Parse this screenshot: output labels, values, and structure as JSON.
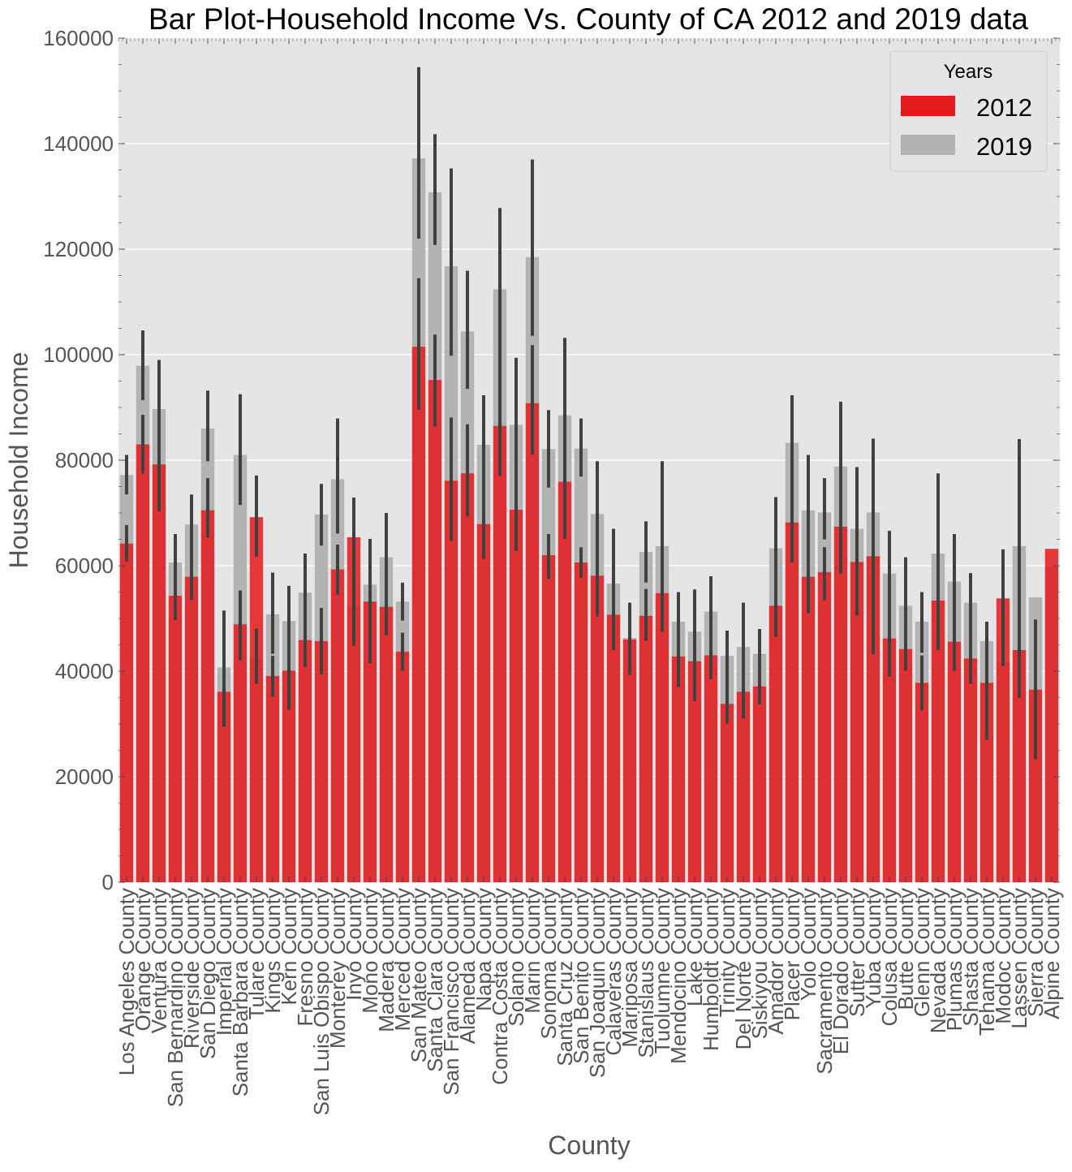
{
  "chart_data": {
    "type": "bar",
    "title": "Bar Plot-Household Income Vs. County of CA 2012 and 2019 data",
    "xlabel": "County",
    "ylabel": "Household Income",
    "ylim": [
      0,
      160000
    ],
    "yticks": [
      0,
      20000,
      40000,
      60000,
      80000,
      100000,
      120000,
      140000,
      160000
    ],
    "grid": true,
    "legend": {
      "title": "Years",
      "placement": "top-right"
    },
    "colors": {
      "2012": "#e41a1c",
      "2019": "#b3b3b3",
      "error_bar": "#404040",
      "plot_background": "#e5e5e5"
    },
    "categories": [
      "Los Angeles County",
      "Orange County",
      "Ventura County",
      "San Bernardino County",
      "Riverside County",
      "San Diego County",
      "Imperial County",
      "Santa Barbara County",
      "Tulare County",
      "Kings County",
      "Kern County",
      "Fresno County",
      "San Luis Obispo County",
      "Monterey County",
      "Inyo County",
      "Mono County",
      "Madera County",
      "Merced County",
      "San Mateo County",
      "Santa Clara County",
      "San Francisco County",
      "Alameda County",
      "Napa County",
      "Contra Costa County",
      "Solano County",
      "Marin County",
      "Sonoma County",
      "Santa Cruz County",
      "San Benito County",
      "San Joaquin County",
      "Calaveras County",
      "Mariposa County",
      "Stanislaus County",
      "Tuolumne County",
      "Mendocino County",
      "Lake County",
      "Humboldt County",
      "Trinity County",
      "Del Norte County",
      "Siskiyou County",
      "Amador County",
      "Placer County",
      "Yolo County",
      "Sacramento County",
      "El Dorado County",
      "Sutter County",
      "Yuba County",
      "Colusa County",
      "Butte County",
      "Glenn County",
      "Nevada County",
      "Plumas County",
      "Shasta County",
      "Tehama County",
      "Modoc County",
      "Lassen County",
      "Sierra County",
      "Alpine County"
    ],
    "series": [
      {
        "name": "2012",
        "values": [
          64200,
          83000,
          79200,
          54300,
          57900,
          70500,
          36100,
          48900,
          69200,
          39100,
          40100,
          45900,
          45700,
          59300,
          65400,
          53200,
          52200,
          43700,
          101500,
          95200,
          76100,
          77500,
          67900,
          86500,
          70600,
          90800,
          62000,
          75900,
          60600,
          58100,
          50700,
          46000,
          50500,
          54800,
          42800,
          41900,
          43000,
          33800,
          36100,
          37100,
          52400,
          68200,
          57900,
          58800,
          67400,
          60700,
          61800,
          46200,
          44200,
          37800,
          53400,
          45600,
          42400,
          37800,
          53800,
          44000,
          36500,
          63200
        ],
        "error": [
          [
            60800,
            67700
          ],
          [
            77500,
            88600
          ],
          [
            70300,
            88400
          ],
          [
            49700,
            59600
          ],
          [
            53500,
            62900
          ],
          [
            65300,
            76600
          ],
          [
            29500,
            42900
          ],
          [
            42100,
            55300
          ],
          [
            61700,
            77100
          ],
          [
            35200,
            42900
          ],
          [
            32700,
            48800
          ],
          [
            40800,
            51300
          ],
          [
            39400,
            52000
          ],
          [
            54500,
            64000
          ],
          [
            44800,
            72900
          ],
          [
            41500,
            65100
          ],
          [
            46800,
            59700
          ],
          [
            40100,
            47300
          ],
          [
            89600,
            114500
          ],
          [
            86400,
            103800
          ],
          [
            64700,
            88100
          ],
          [
            69300,
            86800
          ],
          [
            61300,
            74500
          ],
          [
            77000,
            98000
          ],
          [
            62800,
            79000
          ],
          [
            81000,
            101800
          ],
          [
            57500,
            66000
          ],
          [
            65100,
            87100
          ],
          [
            57700,
            63500
          ],
          [
            50400,
            66000
          ],
          [
            44000,
            56000
          ],
          [
            39300,
            53000
          ],
          [
            45800,
            55600
          ],
          [
            47500,
            62000
          ],
          [
            37000,
            48500
          ],
          [
            34300,
            48500
          ],
          [
            38500,
            48000
          ],
          [
            30100,
            37500
          ],
          [
            31000,
            41500
          ],
          [
            33700,
            40600
          ],
          [
            46500,
            58600
          ],
          [
            60600,
            77900
          ],
          [
            51000,
            65600
          ],
          [
            53500,
            63500
          ],
          [
            58500,
            77000
          ],
          [
            50600,
            69300
          ],
          [
            43200,
            79300
          ],
          [
            39000,
            53400
          ],
          [
            40100,
            48700
          ],
          [
            32600,
            43000
          ],
          [
            44000,
            63200
          ],
          [
            40100,
            52100
          ],
          [
            37600,
            47900
          ],
          [
            27000,
            49200
          ],
          [
            41000,
            63100
          ],
          [
            35000,
            55000
          ],
          [
            23300,
            49800
          ],
          [
            null,
            null
          ]
        ]
      },
      {
        "name": "2019",
        "values": [
          77200,
          97900,
          89700,
          60600,
          67800,
          86000,
          40700,
          81000,
          42600,
          50800,
          49500,
          54900,
          69700,
          76400,
          52000,
          56400,
          61600,
          53200,
          137200,
          130800,
          116800,
          104400,
          82900,
          112400,
          86700,
          118500,
          82100,
          88500,
          82200,
          69800,
          56600,
          46300,
          62600,
          63700,
          49400,
          47500,
          51300,
          42900,
          44600,
          43300,
          63300,
          83300,
          70500,
          70100,
          78800,
          67000,
          70100,
          58500,
          52400,
          49400,
          62300,
          57000,
          53000,
          45700,
          41700,
          63700,
          54000,
          59900
        ],
        "error": [
          [
            73500,
            81000
          ],
          [
            91400,
            104600
          ],
          [
            80500,
            99000
          ],
          [
            55400,
            66000
          ],
          [
            62800,
            73500
          ],
          [
            79800,
            93200
          ],
          [
            35000,
            51500
          ],
          [
            71500,
            92500
          ],
          [
            37600,
            48100
          ],
          [
            43300,
            58700
          ],
          [
            44000,
            56200
          ],
          [
            48000,
            62300
          ],
          [
            63800,
            75500
          ],
          [
            66100,
            87900
          ],
          [
            44800,
            72900
          ],
          [
            44000,
            65000
          ],
          [
            53400,
            70000
          ],
          [
            49600,
            56800
          ],
          [
            122000,
            154500
          ],
          [
            120800,
            141800
          ],
          [
            99800,
            135300
          ],
          [
            93500,
            115900
          ],
          [
            74000,
            92300
          ],
          [
            97900,
            127800
          ],
          [
            75500,
            99400
          ],
          [
            103600,
            137000
          ],
          [
            74800,
            89500
          ],
          [
            74000,
            103200
          ],
          [
            76900,
            87900
          ],
          [
            60000,
            79800
          ],
          [
            46500,
            67000
          ],
          [
            40000,
            53000
          ],
          [
            56800,
            68400
          ],
          [
            48000,
            79800
          ],
          [
            43000,
            55000
          ],
          [
            41000,
            55500
          ],
          [
            44500,
            58000
          ],
          [
            36800,
            47700
          ],
          [
            38000,
            53000
          ],
          [
            37800,
            48000
          ],
          [
            48000,
            73000
          ],
          [
            74200,
            92300
          ],
          [
            51000,
            81000
          ],
          [
            65000,
            76600
          ],
          [
            66600,
            91100
          ],
          [
            58500,
            78700
          ],
          [
            51800,
            84100
          ],
          [
            46000,
            66600
          ],
          [
            43000,
            61600
          ],
          [
            43500,
            55000
          ],
          [
            47500,
            77500
          ],
          [
            48000,
            66000
          ],
          [
            47800,
            58600
          ],
          [
            40500,
            49400
          ],
          [
            null,
            null
          ],
          [
            44000,
            84000
          ],
          [
            null,
            null
          ],
          [
            null,
            null
          ]
        ]
      }
    ]
  }
}
